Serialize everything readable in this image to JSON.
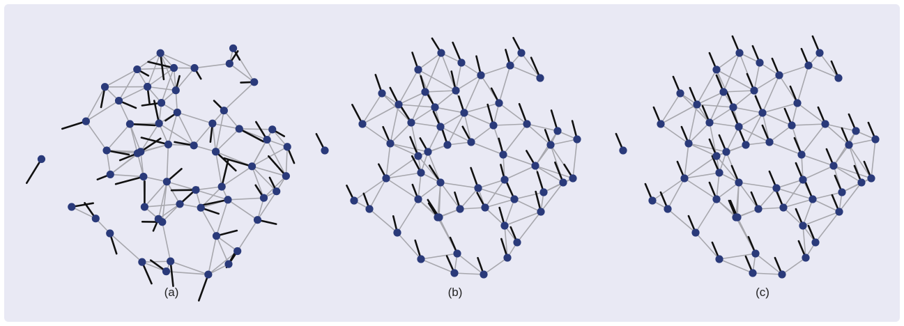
{
  "colors": {
    "background": "#e9e9f4",
    "edge": "#a7a7ad",
    "node": "#2a3a7a",
    "arrow": "#111111"
  },
  "panels": [
    {
      "label": "(a)"
    },
    {
      "label": "(b)"
    },
    {
      "label": "(c)"
    }
  ]
}
